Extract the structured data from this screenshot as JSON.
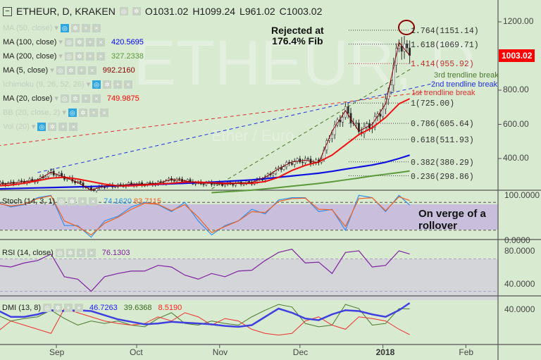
{
  "header": {
    "symbol": "ETHEUR, D, KRAKEN",
    "open": "O1031.02",
    "high": "H1099.24",
    "low": "L961.02",
    "close": "C1003.02"
  },
  "watermark": {
    "main": "ETHEUR, D",
    "sub": "Ether / Euro"
  },
  "legend": [
    {
      "label": "MA (50, close)",
      "value": null,
      "enabled": false
    },
    {
      "label": "MA (100, close)",
      "value": "420.5695",
      "color": "#0000ff",
      "enabled": true
    },
    {
      "label": "MA (200, close)",
      "value": "327.2338",
      "color": "#5a9a3a",
      "enabled": true
    },
    {
      "label": "MA (5, close)",
      "value": "992.2160",
      "color": "#8b0000",
      "enabled": true
    },
    {
      "label": "Ichimoku (9, 26, 52, 26)",
      "value": null,
      "enabled": false
    },
    {
      "label": "MA (20, close)",
      "value": "749.9875",
      "color": "#ff0000",
      "enabled": true
    },
    {
      "label": "BB (20, close, 2)",
      "value": null,
      "enabled": false
    },
    {
      "label": "Vol (20)",
      "value": null,
      "enabled": false
    }
  ],
  "annotations": {
    "rejected": "Rejected at",
    "fib_pct": "176.4% Fib",
    "rollover1": "On verge of a",
    "rollover2": "rollover"
  },
  "trendlines": [
    {
      "label": "1st trendline break",
      "color": "#e03030",
      "start": {
        "day": 0,
        "price": 474
      },
      "end": {
        "day": 160,
        "price": 790
      }
    },
    {
      "label": "2nd trendline break",
      "color": "#2030e0",
      "start": {
        "day": 15,
        "price": 318
      },
      "end": {
        "day": 163,
        "price": 840
      }
    },
    {
      "label": "3rd trendline break",
      "color": "#4a7a30",
      "start": {
        "day": 80,
        "price": 222
      },
      "end": {
        "day": 155,
        "price": 930
      }
    }
  ],
  "fib_levels": [
    {
      "label": "1.764(1151.14)",
      "price": 1151.14,
      "color": "#333"
    },
    {
      "label": "1.618(1069.71)",
      "price": 1069.71,
      "color": "#333"
    },
    {
      "label": "1.414(955.92)",
      "price": 955.92,
      "color": "#c03030"
    },
    {
      "label": "1(725.00)",
      "price": 725.0,
      "color": "#333"
    },
    {
      "label": "0.786(605.64)",
      "price": 605.64,
      "color": "#333"
    },
    {
      "label": "0.618(511.93)",
      "price": 511.93,
      "color": "#333"
    },
    {
      "label": "0.382(380.29)",
      "price": 380.29,
      "color": "#333"
    },
    {
      "label": "0.236(298.86)",
      "price": 298.86,
      "color": "#333"
    }
  ],
  "price_axis": {
    "ticks": [
      "1200.00",
      "800.00",
      "600.00",
      "400.00"
    ],
    "tick_values": [
      1200,
      800,
      600,
      400
    ],
    "last_price": "1003.02",
    "last_value": 1003.02
  },
  "time_axis": {
    "labels": [
      "Sep",
      "Oct",
      "Nov",
      "Dec",
      "2018",
      "Feb"
    ],
    "days": [
      22,
      52,
      83,
      113,
      144,
      175
    ]
  },
  "stoch": {
    "label": "Stoch (14, 3, 1)",
    "k_value": "74.1620",
    "d_value": "83.7115",
    "ticks": [
      "100.0000",
      "0.0000"
    ]
  },
  "rsi": {
    "label": "RSI (14, close)",
    "value": "76.1303",
    "ticks": [
      "80.0000",
      "40.0000"
    ]
  },
  "dmi": {
    "label": "DMI (13, 8)",
    "adx_value": "46.7263",
    "plus_value": "39.6368",
    "minus_value": "8.5190",
    "ticks": [
      "40.0000"
    ]
  },
  "chart_data": {
    "type": "candlestick",
    "title": "ETHEUR, D, KRAKEN",
    "x_unit": "days since Aug 10 2017",
    "days": [
      0,
      5,
      10,
      15,
      20,
      25,
      30,
      35,
      40,
      45,
      50,
      55,
      60,
      65,
      70,
      75,
      80,
      85,
      90,
      95,
      100,
      105,
      110,
      115,
      120,
      125,
      130,
      135,
      140,
      145,
      150,
      154
    ],
    "close": [
      250,
      255,
      265,
      275,
      320,
      290,
      260,
      215,
      240,
      240,
      250,
      250,
      255,
      278,
      270,
      255,
      255,
      250,
      255,
      260,
      290,
      340,
      380,
      390,
      375,
      560,
      680,
      560,
      600,
      720,
      1080,
      1003
    ],
    "ma100": [
      222,
      224,
      226,
      228,
      230,
      232,
      234,
      236,
      238,
      240,
      243,
      246,
      249,
      252,
      255,
      258,
      262,
      266,
      270,
      275,
      282,
      290,
      298,
      306,
      314,
      325,
      338,
      350,
      362,
      378,
      400,
      420
    ],
    "ma200": [
      null,
      null,
      null,
      null,
      null,
      null,
      null,
      null,
      null,
      null,
      null,
      null,
      null,
      null,
      null,
      null,
      200,
      205,
      210,
      215,
      222,
      230,
      238,
      246,
      254,
      264,
      275,
      286,
      298,
      308,
      318,
      327
    ],
    "ma20": [
      240,
      245,
      255,
      270,
      285,
      290,
      280,
      265,
      250,
      240,
      240,
      245,
      250,
      255,
      262,
      262,
      258,
      255,
      255,
      255,
      265,
      290,
      330,
      360,
      380,
      420,
      480,
      540,
      580,
      640,
      720,
      750
    ],
    "stoch_k": [
      80,
      70,
      75,
      90,
      95,
      30,
      30,
      5,
      40,
      50,
      70,
      80,
      75,
      60,
      80,
      40,
      10,
      30,
      40,
      65,
      55,
      85,
      90,
      90,
      60,
      65,
      20,
      95,
      90,
      60,
      95,
      74
    ],
    "stoch_d": [
      78,
      72,
      76,
      88,
      94,
      40,
      28,
      10,
      35,
      48,
      65,
      78,
      76,
      62,
      75,
      48,
      15,
      28,
      40,
      60,
      58,
      82,
      88,
      89,
      65,
      64,
      28,
      88,
      90,
      62,
      92,
      84
    ],
    "rsi": [
      62,
      60,
      65,
      68,
      76,
      48,
      45,
      30,
      48,
      52,
      55,
      55,
      62,
      60,
      50,
      45,
      52,
      48,
      55,
      56,
      68,
      78,
      82,
      65,
      66,
      52,
      78,
      80,
      60,
      62,
      80,
      76
    ],
    "adx": [
      38,
      30,
      30,
      33,
      38,
      37,
      38,
      37,
      32,
      27,
      24,
      21,
      22,
      24,
      23,
      22,
      21,
      19,
      18,
      20,
      30,
      40,
      35,
      28,
      26,
      33,
      38,
      37,
      33,
      30,
      38,
      46.7
    ],
    "plus_di": [
      32,
      25,
      28,
      30,
      38,
      28,
      20,
      25,
      22,
      25,
      20,
      18,
      28,
      35,
      22,
      20,
      25,
      22,
      20,
      30,
      38,
      45,
      42,
      22,
      18,
      20,
      45,
      40,
      20,
      22,
      40,
      39.6
    ],
    "minus_di": [
      12,
      25,
      20,
      15,
      10,
      40,
      35,
      30,
      25,
      22,
      20,
      22,
      30,
      25,
      35,
      30,
      20,
      28,
      25,
      15,
      10,
      8,
      10,
      25,
      30,
      20,
      15,
      30,
      28,
      25,
      15,
      8.5
    ],
    "ylim_price": [
      150,
      1250
    ],
    "stoch_bands": [
      20,
      80
    ],
    "rsi_bands": [
      30,
      70
    ]
  }
}
